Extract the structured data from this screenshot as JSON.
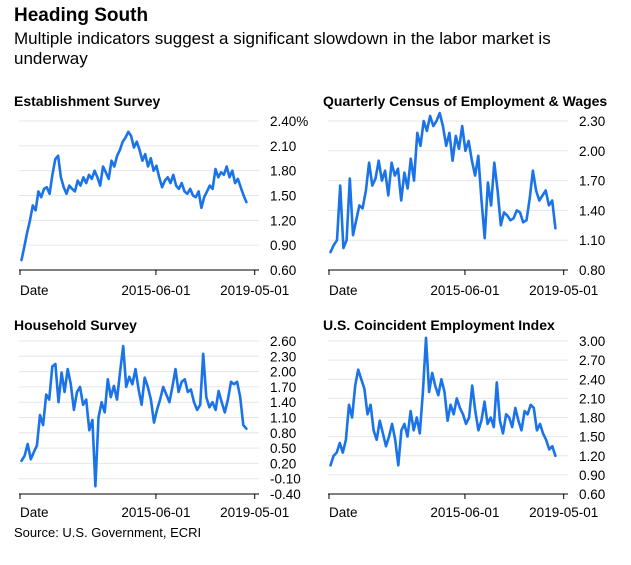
{
  "header": {
    "title": "Heading South",
    "subtitle": "Multiple indicators suggest a significant slowdown in the labor market is underway"
  },
  "footer": {
    "source": "Source: U.S. Government, ECRI"
  },
  "colors": {
    "line": "#1a73e8",
    "grid": "#e6e6e6",
    "axis": "#000000"
  },
  "chart_data": [
    {
      "type": "line",
      "title": "Establishment Survey",
      "xlabel": "",
      "ylabel": "",
      "x_ticks": [
        "Date",
        "2015-06-01",
        "2019-05-01"
      ],
      "x_range": [
        2010.0,
        2019.5
      ],
      "y_ticks": [
        "2.40%",
        "2.10",
        "1.80",
        "1.50",
        "1.20",
        "0.90",
        "0.60"
      ],
      "y_tick_values": [
        2.4,
        2.1,
        1.8,
        1.5,
        1.2,
        0.9,
        0.6
      ],
      "ylim": [
        0.6,
        2.4
      ],
      "series": [
        {
          "name": "Establishment Survey",
          "x_start": 2010.1,
          "x_end": 2019.0,
          "values": [
            0.72,
            0.88,
            1.05,
            1.2,
            1.38,
            1.32,
            1.55,
            1.48,
            1.58,
            1.6,
            1.52,
            1.75,
            1.94,
            1.98,
            1.72,
            1.6,
            1.52,
            1.62,
            1.58,
            1.55,
            1.68,
            1.62,
            1.72,
            1.65,
            1.75,
            1.7,
            1.8,
            1.72,
            1.62,
            1.85,
            1.78,
            1.7,
            1.92,
            1.85,
            1.98,
            2.05,
            2.15,
            2.2,
            2.27,
            2.22,
            2.08,
            2.15,
            2.05,
            1.92,
            2.0,
            1.85,
            1.95,
            1.8,
            1.86,
            1.72,
            1.6,
            1.68,
            1.72,
            1.65,
            1.75,
            1.62,
            1.58,
            1.65,
            1.55,
            1.52,
            1.58,
            1.5,
            1.48,
            1.55,
            1.35,
            1.48,
            1.55,
            1.62,
            1.58,
            1.82,
            1.72,
            1.78,
            1.75,
            1.85,
            1.72,
            1.8,
            1.65,
            1.7,
            1.6,
            1.5,
            1.42
          ]
        }
      ]
    },
    {
      "type": "line",
      "title": "Quarterly Census of Employment & Wages",
      "xlabel": "",
      "ylabel": "",
      "x_ticks": [
        "Date",
        "2015-06-01",
        "2019-05-01"
      ],
      "x_range": [
        2010.0,
        2019.5
      ],
      "y_ticks": [
        "2.30",
        "2.00",
        "1.70",
        "1.40",
        "1.10",
        "0.80"
      ],
      "y_tick_values": [
        2.3,
        2.0,
        1.7,
        1.4,
        1.1,
        0.8
      ],
      "ylim": [
        0.8,
        2.3
      ],
      "series": [
        {
          "name": "Quarterly Census of Employment & Wages",
          "x_start": 2010.1,
          "x_end": 2019.0,
          "values": [
            0.98,
            1.05,
            1.1,
            1.65,
            1.02,
            1.1,
            1.72,
            1.15,
            1.3,
            1.45,
            1.42,
            1.6,
            1.88,
            1.65,
            1.72,
            1.9,
            1.7,
            1.8,
            1.55,
            1.88,
            1.75,
            1.82,
            1.5,
            1.78,
            1.62,
            1.92,
            1.7,
            2.18,
            2.05,
            2.3,
            2.2,
            2.35,
            2.25,
            2.3,
            2.38,
            2.25,
            2.05,
            2.18,
            1.9,
            2.15,
            2.02,
            2.25,
            2.0,
            2.1,
            1.9,
            1.75,
            1.95,
            1.5,
            1.12,
            1.68,
            1.45,
            1.88,
            1.6,
            1.25,
            1.38,
            1.35,
            1.3,
            1.32,
            1.4,
            1.38,
            1.28,
            1.3,
            1.52,
            1.8,
            1.6,
            1.5,
            1.55,
            1.6,
            1.45,
            1.5,
            1.22
          ]
        }
      ]
    },
    {
      "type": "line",
      "title": "Household Survey",
      "xlabel": "",
      "ylabel": "",
      "x_ticks": [
        "Date",
        "2015-06-01",
        "2019-05-01"
      ],
      "x_range": [
        2010.0,
        2019.5
      ],
      "y_ticks": [
        "2.60",
        "2.30",
        "2.00",
        "1.70",
        "1.40",
        "1.10",
        "0.80",
        "0.50",
        "0.20",
        "-0.10",
        "-0.40"
      ],
      "y_tick_values": [
        2.6,
        2.3,
        2.0,
        1.7,
        1.4,
        1.1,
        0.8,
        0.5,
        0.2,
        -0.1,
        -0.4
      ],
      "ylim": [
        -0.4,
        2.6
      ],
      "series": [
        {
          "name": "Household Survey",
          "x_start": 2010.1,
          "x_end": 2019.0,
          "values": [
            0.25,
            0.35,
            0.58,
            0.28,
            0.42,
            0.55,
            1.15,
            0.95,
            1.55,
            1.45,
            2.1,
            2.15,
            1.4,
            1.98,
            1.6,
            2.05,
            1.75,
            1.25,
            1.6,
            1.7,
            1.35,
            1.45,
            0.85,
            1.05,
            -0.25,
            1.1,
            1.4,
            1.2,
            1.85,
            1.5,
            1.72,
            1.45,
            2.0,
            2.5,
            1.7,
            1.9,
            1.75,
            2.05,
            1.65,
            1.35,
            1.88,
            1.7,
            1.45,
            1.0,
            1.25,
            1.45,
            1.7,
            1.55,
            1.4,
            1.7,
            2.05,
            1.6,
            1.8,
            1.85,
            1.6,
            1.65,
            1.4,
            1.25,
            1.35,
            2.35,
            1.5,
            1.3,
            1.4,
            1.25,
            1.62,
            1.4,
            1.2,
            1.45,
            1.8,
            1.75,
            1.8,
            1.5,
            0.95,
            0.88
          ]
        }
      ]
    },
    {
      "type": "line",
      "title": "U.S. Coincident Employment Index",
      "xlabel": "",
      "ylabel": "",
      "x_ticks": [
        "Date",
        "2015-06-01",
        "2019-05-01"
      ],
      "x_range": [
        2010.0,
        2019.5
      ],
      "y_ticks": [
        "3.00",
        "2.70",
        "2.40",
        "2.10",
        "1.80",
        "1.50",
        "1.20",
        "0.90",
        "0.60"
      ],
      "y_tick_values": [
        3.0,
        2.7,
        2.4,
        2.1,
        1.8,
        1.5,
        1.2,
        0.9,
        0.6
      ],
      "ylim": [
        0.6,
        3.0
      ],
      "series": [
        {
          "name": "U.S. Coincident Employment Index",
          "x_start": 2010.1,
          "x_end": 2019.0,
          "values": [
            1.05,
            1.2,
            1.25,
            1.4,
            1.25,
            1.45,
            2.0,
            1.8,
            2.3,
            2.55,
            2.4,
            2.25,
            1.85,
            2.0,
            1.6,
            1.45,
            1.75,
            1.55,
            1.35,
            1.5,
            1.7,
            1.45,
            1.05,
            1.6,
            1.7,
            1.5,
            1.9,
            1.6,
            1.8,
            1.55,
            2.2,
            3.05,
            2.2,
            2.5,
            2.3,
            2.15,
            2.4,
            2.2,
            1.75,
            2.0,
            1.85,
            2.1,
            1.95,
            1.85,
            1.7,
            1.8,
            2.3,
            1.9,
            1.6,
            1.75,
            2.05,
            1.7,
            1.8,
            1.65,
            2.35,
            1.75,
            1.55,
            1.85,
            1.8,
            1.65,
            1.95,
            1.75,
            1.6,
            1.9,
            1.85,
            2.0,
            1.95,
            1.6,
            1.7,
            1.55,
            1.45,
            1.3,
            1.35,
            1.2
          ]
        }
      ]
    }
  ]
}
